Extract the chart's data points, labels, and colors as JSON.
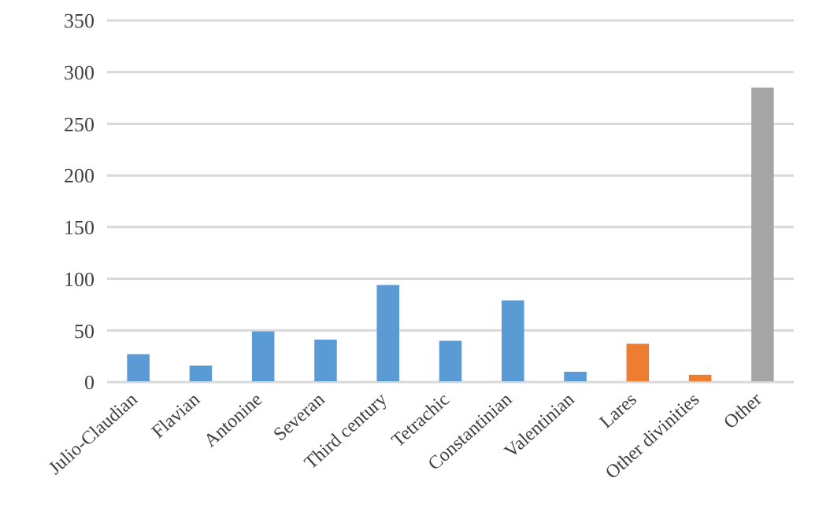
{
  "chart_data": {
    "type": "bar",
    "categories": [
      "Julio-Claudian",
      "Flavian",
      "Antonine",
      "Severan",
      "Third century",
      "Tetrachic",
      "Constantinian",
      "Valentinian",
      "Lares",
      "Other divinities",
      "Other"
    ],
    "values": [
      27,
      16,
      49,
      41,
      94,
      40,
      79,
      10,
      37,
      7,
      285
    ],
    "colors": [
      "#5b9bd5",
      "#5b9bd5",
      "#5b9bd5",
      "#5b9bd5",
      "#5b9bd5",
      "#5b9bd5",
      "#5b9bd5",
      "#5b9bd5",
      "#ed7d31",
      "#ed7d31",
      "#a5a5a5"
    ],
    "ylim": [
      0,
      350
    ],
    "yticks": [
      0,
      50,
      100,
      150,
      200,
      250,
      300,
      350
    ],
    "grid": "y"
  }
}
